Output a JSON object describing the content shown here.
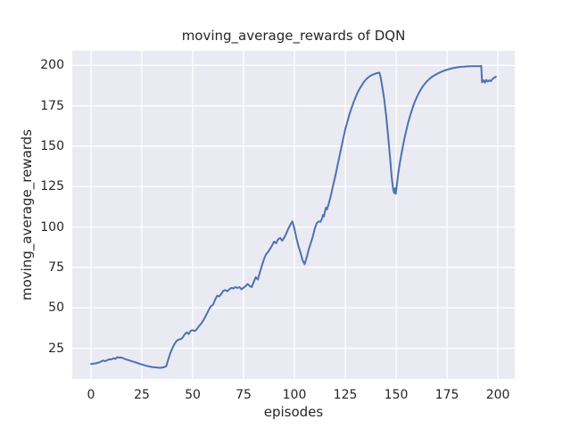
{
  "colors": {
    "figure_background": "#ffffff",
    "plot_background": "#eaeaf2",
    "grid_color": "#ffffff",
    "line_color": "#4c72b0",
    "text_color": "#262626"
  },
  "chart_data": {
    "type": "line",
    "title": "moving_average_rewards of DQN",
    "xlabel": "episodes",
    "ylabel": "moving_average_rewards",
    "grid": true,
    "legend_visible": false,
    "x_ticks": [
      0,
      25,
      50,
      75,
      100,
      125,
      150,
      175,
      200
    ],
    "y_ticks": [
      25,
      50,
      75,
      100,
      125,
      150,
      175,
      200
    ],
    "xlim": [
      -9.2,
      208.3
    ],
    "ylim": [
      6.0,
      209.0
    ],
    "series": [
      {
        "name": "moving_average_rewards",
        "color": "#4c72b0",
        "points": [
          [
            0,
            15.2
          ],
          [
            2,
            15.6
          ],
          [
            4,
            16.2
          ],
          [
            5,
            16.8
          ],
          [
            6,
            17.4
          ],
          [
            7,
            17.0
          ],
          [
            8,
            17.6
          ],
          [
            9,
            18.2
          ],
          [
            10,
            18.0
          ],
          [
            11,
            18.8
          ],
          [
            12,
            18.4
          ],
          [
            13,
            19.5
          ],
          [
            14,
            19.2
          ],
          [
            15,
            19.3
          ],
          [
            16,
            18.7
          ],
          [
            17,
            18.2
          ],
          [
            18,
            17.8
          ],
          [
            20,
            17.0
          ],
          [
            22,
            16.2
          ],
          [
            24,
            15.3
          ],
          [
            26,
            14.6
          ],
          [
            28,
            13.9
          ],
          [
            30,
            13.4
          ],
          [
            32,
            13.1
          ],
          [
            34,
            12.9
          ],
          [
            36,
            13.2
          ],
          [
            37,
            14.0
          ],
          [
            38,
            18.0
          ],
          [
            39,
            22.0
          ],
          [
            40,
            25.0
          ],
          [
            41,
            27.5
          ],
          [
            42,
            29.5
          ],
          [
            43,
            30.3
          ],
          [
            44,
            30.6
          ],
          [
            45,
            31.5
          ],
          [
            46,
            33.5
          ],
          [
            47,
            34.8
          ],
          [
            48,
            33.8
          ],
          [
            49,
            35.8
          ],
          [
            50,
            36.2
          ],
          [
            51,
            35.6
          ],
          [
            52,
            36.8
          ],
          [
            53,
            38.5
          ],
          [
            54,
            40.0
          ],
          [
            55,
            41.8
          ],
          [
            56,
            44.0
          ],
          [
            57,
            46.5
          ],
          [
            58,
            49.0
          ],
          [
            59,
            51.0
          ],
          [
            60,
            52.0
          ],
          [
            61,
            55.0
          ],
          [
            62,
            57.5
          ],
          [
            63,
            57.0
          ],
          [
            64,
            58.5
          ],
          [
            65,
            60.5
          ],
          [
            66,
            61.0
          ],
          [
            67,
            60.2
          ],
          [
            68,
            61.5
          ],
          [
            69,
            62.4
          ],
          [
            70,
            62.0
          ],
          [
            71,
            62.8
          ],
          [
            72,
            62.3
          ],
          [
            73,
            62.8
          ],
          [
            74,
            61.5
          ],
          [
            75,
            62.5
          ],
          [
            76,
            63.5
          ],
          [
            77,
            64.8
          ],
          [
            78,
            63.5
          ],
          [
            79,
            62.8
          ],
          [
            80,
            66.0
          ],
          [
            81,
            69.0
          ],
          [
            82,
            67.5
          ],
          [
            83,
            72.0
          ],
          [
            84,
            76.0
          ],
          [
            85,
            80.0
          ],
          [
            86,
            83.0
          ],
          [
            87,
            84.5
          ],
          [
            88,
            86.5
          ],
          [
            89,
            88.5
          ],
          [
            90,
            91.0
          ],
          [
            91,
            90.0
          ],
          [
            92,
            92.5
          ],
          [
            93,
            93.2
          ],
          [
            94,
            91.5
          ],
          [
            95,
            93.5
          ],
          [
            96,
            96.0
          ],
          [
            97,
            99.0
          ],
          [
            98,
            101.5
          ],
          [
            99,
            103.5
          ],
          [
            100,
            99.0
          ],
          [
            101,
            93.0
          ],
          [
            102,
            88.0
          ],
          [
            103,
            84.0
          ],
          [
            104,
            79.5
          ],
          [
            105,
            77.0
          ],
          [
            106,
            81.0
          ],
          [
            107,
            86.0
          ],
          [
            108,
            90.0
          ],
          [
            109,
            94.0
          ],
          [
            110,
            99.0
          ],
          [
            111,
            102.5
          ],
          [
            112,
            103.5
          ],
          [
            112.8,
            103.2
          ],
          [
            113.5,
            105.0
          ],
          [
            114,
            107.5
          ],
          [
            114.5,
            106.5
          ],
          [
            115,
            109.5
          ],
          [
            115.5,
            112.0
          ],
          [
            116,
            111.0
          ],
          [
            117,
            115.0
          ],
          [
            118,
            120.0
          ],
          [
            119,
            126.0
          ],
          [
            120,
            131.0
          ],
          [
            121,
            137.0
          ],
          [
            122,
            143.0
          ],
          [
            123,
            149.0
          ],
          [
            124,
            155.0
          ],
          [
            125,
            160.5
          ],
          [
            126,
            165.0
          ],
          [
            127,
            169.5
          ],
          [
            128,
            173.5
          ],
          [
            129,
            177.0
          ],
          [
            130,
            180.0
          ],
          [
            131,
            183.0
          ],
          [
            132,
            185.5
          ],
          [
            133,
            187.5
          ],
          [
            134,
            189.5
          ],
          [
            135,
            191.0
          ],
          [
            136,
            192.3
          ],
          [
            137,
            193.3
          ],
          [
            138,
            194.0
          ],
          [
            139,
            194.5
          ],
          [
            140,
            195.0
          ],
          [
            141,
            195.3
          ],
          [
            141.8,
            195.5
          ],
          [
            142.3,
            193.0
          ],
          [
            143,
            188.0
          ],
          [
            144,
            180.0
          ],
          [
            145,
            170.0
          ],
          [
            146,
            157.0
          ],
          [
            147,
            143.0
          ],
          [
            147.8,
            131.0
          ],
          [
            148.5,
            123.5
          ],
          [
            149,
            121.0
          ],
          [
            149.4,
            124.0
          ],
          [
            149.8,
            120.5
          ],
          [
            151,
            133.0
          ],
          [
            152,
            141.0
          ],
          [
            153,
            148.0
          ],
          [
            154,
            154.5
          ],
          [
            155,
            160.0
          ],
          [
            156,
            165.0
          ],
          [
            157,
            169.5
          ],
          [
            158,
            173.5
          ],
          [
            159,
            177.0
          ],
          [
            160,
            180.0
          ],
          [
            161,
            182.5
          ],
          [
            162,
            184.8
          ],
          [
            163,
            186.8
          ],
          [
            164,
            188.5
          ],
          [
            165,
            190.0
          ],
          [
            166,
            191.2
          ],
          [
            167,
            192.3
          ],
          [
            168,
            193.2
          ],
          [
            169,
            194.0
          ],
          [
            170,
            194.7
          ],
          [
            171,
            195.3
          ],
          [
            172,
            195.9
          ],
          [
            173,
            196.4
          ],
          [
            174,
            196.9
          ],
          [
            175,
            197.3
          ],
          [
            176,
            197.7
          ],
          [
            177,
            198.0
          ],
          [
            178,
            198.3
          ],
          [
            179,
            198.6
          ],
          [
            180,
            198.8
          ],
          [
            181,
            199.0
          ],
          [
            182,
            199.1
          ],
          [
            183,
            199.2
          ],
          [
            184,
            199.3
          ],
          [
            185,
            199.4
          ],
          [
            186,
            199.4
          ],
          [
            187,
            199.5
          ],
          [
            188,
            199.5
          ],
          [
            189,
            199.5
          ],
          [
            190,
            199.5
          ],
          [
            191,
            199.5
          ],
          [
            191.8,
            199.6
          ],
          [
            192.2,
            189.5
          ],
          [
            193,
            190.8
          ],
          [
            193.6,
            189.3
          ],
          [
            194.3,
            191.0
          ],
          [
            195,
            190.0
          ],
          [
            195.8,
            190.8
          ],
          [
            196.5,
            190.2
          ],
          [
            197.3,
            191.5
          ],
          [
            198,
            192.2
          ],
          [
            199,
            193.0
          ]
        ]
      }
    ]
  }
}
